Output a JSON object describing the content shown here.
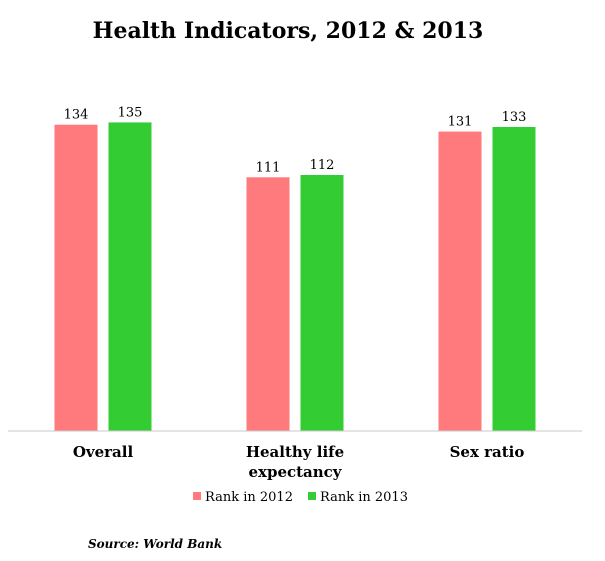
{
  "chart_data": {
    "type": "bar",
    "title": "Health Indicators, 2012 & 2013",
    "categories": [
      [
        "Overall"
      ],
      [
        "Healthy life",
        "expectancy"
      ],
      [
        "Sex ratio"
      ]
    ],
    "series": [
      {
        "name": "Rank in 2012",
        "color": "#ff7a7c",
        "values": [
          134,
          111,
          131
        ]
      },
      {
        "name": "Rank in 2013",
        "color": "#33cc33",
        "values": [
          135,
          112,
          133
        ]
      }
    ],
    "ylim": [
      0,
      140
    ],
    "grid": false,
    "legend": "bottom",
    "source": "Source: World Bank"
  }
}
